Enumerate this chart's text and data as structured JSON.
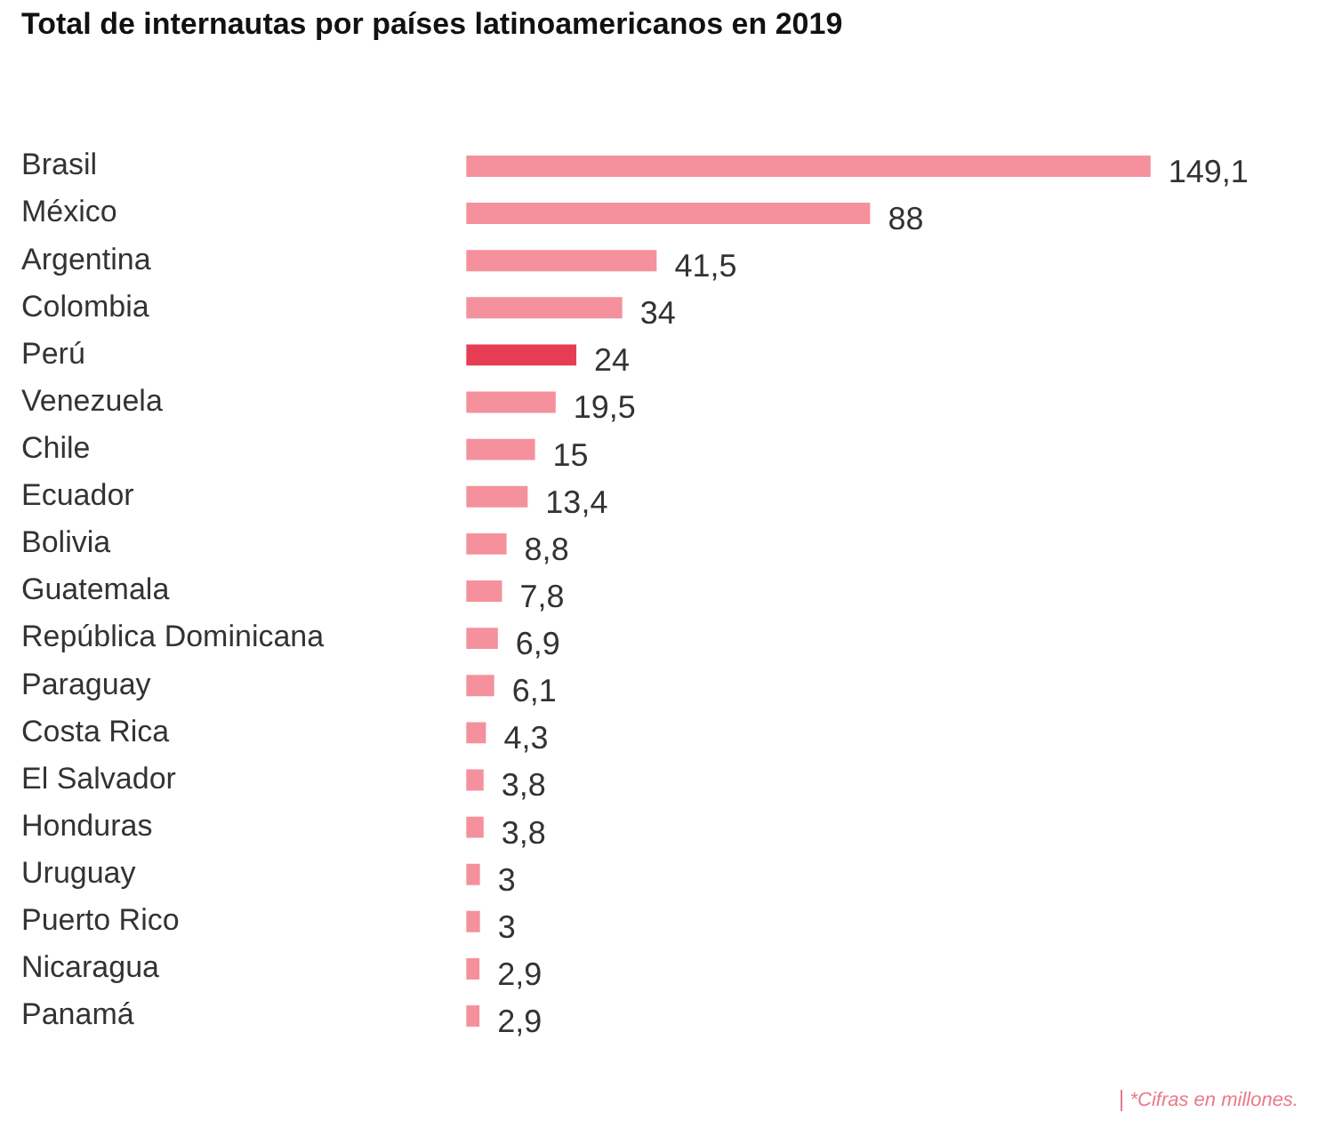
{
  "chart_data": {
    "type": "bar",
    "orientation": "horizontal",
    "title": "Total de internautas por países latinoamericanos en 2019",
    "categories": [
      "Brasil",
      "México",
      "Argentina",
      "Colombia",
      "Perú",
      "Venezuela",
      "Chile",
      "Ecuador",
      "Bolivia",
      "Guatemala",
      "República Dominicana",
      "Paraguay",
      "Costa Rica",
      "El Salvador",
      "Honduras",
      "Uruguay",
      "Puerto Rico",
      "Nicaragua",
      "Panamá"
    ],
    "values": [
      149.1,
      88,
      41.5,
      34,
      24,
      19.5,
      15,
      13.4,
      8.8,
      7.8,
      6.9,
      6.1,
      4.3,
      3.8,
      3.8,
      3,
      3,
      2.9,
      2.9
    ],
    "value_labels": [
      "149,1",
      "88",
      "41,5",
      "34",
      "24",
      "19,5",
      "15",
      "13,4",
      "8,8",
      "7,8",
      "6,9",
      "6,1",
      "4,3",
      "3,8",
      "3,8",
      "3",
      "3",
      "2,9",
      "2,9"
    ],
    "colors": [
      "#f4919d",
      "#f4919d",
      "#f4919d",
      "#f4919d",
      "#e63d55",
      "#f4919d",
      "#f4919d",
      "#f4919d",
      "#f4919d",
      "#f4919d",
      "#f4919d",
      "#f4919d",
      "#f4919d",
      "#f4919d",
      "#f4919d",
      "#f4919d",
      "#f4919d",
      "#f4919d",
      "#f4919d"
    ],
    "grid": false,
    "legend": false,
    "annotations": [
      "*Cifras en millones."
    ]
  }
}
